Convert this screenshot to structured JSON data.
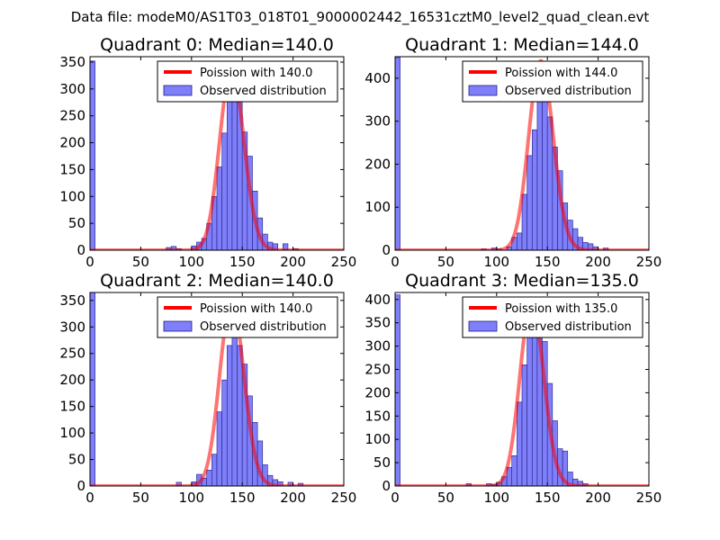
{
  "figure_title": "Data file: modeM0/AS1T03_018T01_9000002442_16531cztM0_level2_quad_clean.evt",
  "colors": {
    "bar_fill": "#7f7ff9",
    "bar_edge": "#202086",
    "fit_line": "#ff0000",
    "axis": "#000000"
  },
  "chart_data": [
    {
      "type": "bar",
      "title": "Quadrant 0: Median=140.0",
      "xlabel": "",
      "ylabel": "",
      "xlim": [
        0,
        250
      ],
      "ylim": [
        0,
        360
      ],
      "xticks": [
        0,
        50,
        100,
        150,
        200,
        250
      ],
      "yticks": [
        0,
        50,
        100,
        150,
        200,
        250,
        300,
        350
      ],
      "legend": {
        "location": "top-right",
        "line_label": "Poission with 140.0",
        "bar_label": "Observed distribution"
      },
      "bin_width": 5,
      "bins": [
        {
          "x": 0,
          "count": 352
        },
        {
          "x": 75,
          "count": 5
        },
        {
          "x": 80,
          "count": 7
        },
        {
          "x": 85,
          "count": 3
        },
        {
          "x": 100,
          "count": 8
        },
        {
          "x": 105,
          "count": 15
        },
        {
          "x": 110,
          "count": 22
        },
        {
          "x": 115,
          "count": 50
        },
        {
          "x": 120,
          "count": 100
        },
        {
          "x": 125,
          "count": 155
        },
        {
          "x": 130,
          "count": 218
        },
        {
          "x": 135,
          "count": 290
        },
        {
          "x": 140,
          "count": 330
        },
        {
          "x": 145,
          "count": 285
        },
        {
          "x": 150,
          "count": 220
        },
        {
          "x": 155,
          "count": 175
        },
        {
          "x": 160,
          "count": 110
        },
        {
          "x": 165,
          "count": 60
        },
        {
          "x": 170,
          "count": 30
        },
        {
          "x": 175,
          "count": 15
        },
        {
          "x": 180,
          "count": 12
        },
        {
          "x": 190,
          "count": 12
        },
        {
          "x": 200,
          "count": 3
        }
      ],
      "fit": {
        "model": "poisson",
        "mean": 140.0,
        "peak": 340
      }
    },
    {
      "type": "bar",
      "title": "Quadrant 1: Median=144.0",
      "xlabel": "",
      "ylabel": "",
      "xlim": [
        0,
        250
      ],
      "ylim": [
        0,
        450
      ],
      "xticks": [
        0,
        50,
        100,
        150,
        200,
        250
      ],
      "yticks": [
        0,
        100,
        200,
        300,
        400
      ],
      "legend": {
        "location": "top-right",
        "line_label": "Poission with 144.0",
        "bar_label": "Observed distribution"
      },
      "bin_width": 5,
      "bins": [
        {
          "x": 0,
          "count": 448
        },
        {
          "x": 85,
          "count": 3
        },
        {
          "x": 95,
          "count": 5
        },
        {
          "x": 100,
          "count": 3
        },
        {
          "x": 110,
          "count": 8
        },
        {
          "x": 115,
          "count": 30
        },
        {
          "x": 120,
          "count": 40
        },
        {
          "x": 125,
          "count": 130
        },
        {
          "x": 130,
          "count": 220
        },
        {
          "x": 135,
          "count": 280
        },
        {
          "x": 140,
          "count": 345
        },
        {
          "x": 145,
          "count": 430
        },
        {
          "x": 150,
          "count": 310
        },
        {
          "x": 155,
          "count": 240
        },
        {
          "x": 160,
          "count": 185
        },
        {
          "x": 165,
          "count": 110
        },
        {
          "x": 170,
          "count": 70
        },
        {
          "x": 175,
          "count": 50
        },
        {
          "x": 180,
          "count": 30
        },
        {
          "x": 185,
          "count": 18
        },
        {
          "x": 190,
          "count": 15
        },
        {
          "x": 195,
          "count": 8
        },
        {
          "x": 205,
          "count": 5
        }
      ],
      "fit": {
        "model": "poisson",
        "mean": 144.0,
        "peak": 440
      }
    },
    {
      "type": "bar",
      "title": "Quadrant 2: Median=140.0",
      "xlabel": "",
      "ylabel": "",
      "xlim": [
        0,
        250
      ],
      "ylim": [
        0,
        365
      ],
      "xticks": [
        0,
        50,
        100,
        150,
        200,
        250
      ],
      "yticks": [
        0,
        50,
        100,
        150,
        200,
        250,
        300,
        350
      ],
      "legend": {
        "location": "top-right",
        "line_label": "Poission with 140.0",
        "bar_label": "Observed distribution"
      },
      "bin_width": 5,
      "bins": [
        {
          "x": 0,
          "count": 365
        },
        {
          "x": 85,
          "count": 7
        },
        {
          "x": 100,
          "count": 8
        },
        {
          "x": 105,
          "count": 22
        },
        {
          "x": 110,
          "count": 15
        },
        {
          "x": 115,
          "count": 30
        },
        {
          "x": 120,
          "count": 60
        },
        {
          "x": 125,
          "count": 140
        },
        {
          "x": 130,
          "count": 200
        },
        {
          "x": 135,
          "count": 265
        },
        {
          "x": 140,
          "count": 300
        },
        {
          "x": 145,
          "count": 265
        },
        {
          "x": 150,
          "count": 230
        },
        {
          "x": 155,
          "count": 170
        },
        {
          "x": 160,
          "count": 120
        },
        {
          "x": 165,
          "count": 85
        },
        {
          "x": 170,
          "count": 40
        },
        {
          "x": 175,
          "count": 20
        },
        {
          "x": 180,
          "count": 12
        },
        {
          "x": 185,
          "count": 8
        },
        {
          "x": 195,
          "count": 7
        },
        {
          "x": 205,
          "count": 5
        }
      ],
      "fit": {
        "model": "poisson",
        "mean": 140.0,
        "peak": 350
      }
    },
    {
      "type": "bar",
      "title": "Quadrant 3: Median=135.0",
      "xlabel": "",
      "ylabel": "",
      "xlim": [
        0,
        250
      ],
      "ylim": [
        0,
        415
      ],
      "xticks": [
        0,
        50,
        100,
        150,
        200,
        250
      ],
      "yticks": [
        0,
        50,
        100,
        150,
        200,
        250,
        300,
        350,
        400
      ],
      "legend": {
        "location": "top-right",
        "line_label": "Poission with 135.0",
        "bar_label": "Observed distribution"
      },
      "bin_width": 5,
      "bins": [
        {
          "x": 0,
          "count": 410
        },
        {
          "x": 70,
          "count": 5
        },
        {
          "x": 90,
          "count": 5
        },
        {
          "x": 95,
          "count": 3
        },
        {
          "x": 100,
          "count": 8
        },
        {
          "x": 105,
          "count": 20
        },
        {
          "x": 110,
          "count": 40
        },
        {
          "x": 115,
          "count": 65
        },
        {
          "x": 120,
          "count": 180
        },
        {
          "x": 125,
          "count": 260
        },
        {
          "x": 130,
          "count": 350
        },
        {
          "x": 135,
          "count": 370
        },
        {
          "x": 140,
          "count": 340
        },
        {
          "x": 145,
          "count": 310
        },
        {
          "x": 150,
          "count": 220
        },
        {
          "x": 155,
          "count": 140
        },
        {
          "x": 160,
          "count": 80
        },
        {
          "x": 165,
          "count": 75
        },
        {
          "x": 170,
          "count": 30
        },
        {
          "x": 175,
          "count": 15
        },
        {
          "x": 180,
          "count": 10
        },
        {
          "x": 185,
          "count": 5
        }
      ],
      "fit": {
        "model": "poisson",
        "mean": 135.0,
        "peak": 395
      }
    }
  ]
}
